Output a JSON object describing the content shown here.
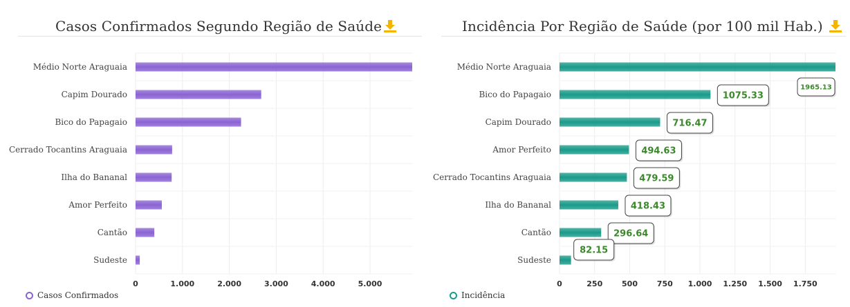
{
  "chart_data": [
    {
      "type": "bar",
      "orientation": "horizontal",
      "title": "Casos Confirmados Segundo Região de Saúde",
      "categories": [
        "Médio Norte Araguaia",
        "Capim Dourado",
        "Bico do Papagaio",
        "Cerrado Tocantins Araguaia",
        "Ilha do Bananal",
        "Amor Perfeito",
        "Cantão",
        "Sudeste"
      ],
      "series": [
        {
          "name": "Casos Confirmados",
          "values": [
            5900,
            2680,
            2250,
            780,
            770,
            560,
            400,
            90
          ]
        }
      ],
      "x_ticks": [
        "0",
        "1.000",
        "2.000",
        "3.000",
        "4.000",
        "5.000"
      ],
      "xlim": [
        0,
        5900
      ],
      "legend_label": "Casos Confirmados",
      "legend_position": "bottom-left",
      "color": "#8a63d2",
      "grid": true
    },
    {
      "type": "bar",
      "orientation": "horizontal",
      "title": "Incidência Por Região de Saúde (por 100 mil Hab.)",
      "categories": [
        "Médio Norte Araguaia",
        "Bico do Papagaio",
        "Capim Dourado",
        "Amor Perfeito",
        "Cerrado Tocantins Araguaia",
        "Ilha do Bananal",
        "Cantão",
        "Sudeste"
      ],
      "series": [
        {
          "name": "Incidência",
          "values": [
            1965.13,
            1075.33,
            716.47,
            494.63,
            479.59,
            418.43,
            296.64,
            82.15
          ]
        }
      ],
      "data_labels": [
        "1965.13",
        "1075.33",
        "716.47",
        "494.63",
        "479.59",
        "418.43",
        "296.64",
        "82.15"
      ],
      "x_ticks": [
        "0",
        "250",
        "500",
        "750",
        "1.000",
        "1.250",
        "1.500",
        "1.750"
      ],
      "xlim": [
        0,
        1970
      ],
      "legend_label": "Incidência",
      "legend_position": "bottom-left",
      "color": "#1a9a8a",
      "grid": true
    }
  ],
  "icons": {
    "download": "download-icon"
  },
  "colors": {
    "download_icon": "#f4b400",
    "data_label_text": "#3a8a2a"
  }
}
